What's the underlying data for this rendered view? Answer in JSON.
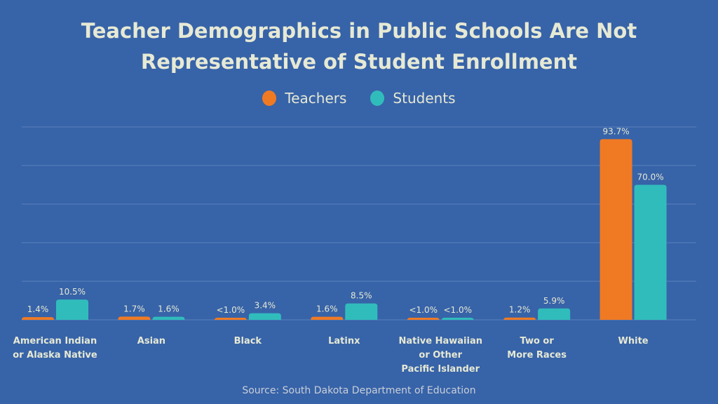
{
  "chart_data": {
    "type": "bar",
    "title_lines": [
      "Teacher Demographics in Public Schools Are Not",
      "Representative of Student Enrollment"
    ],
    "categories": [
      [
        "American Indian",
        "or Alaska Native"
      ],
      [
        "Asian"
      ],
      [
        "Black"
      ],
      [
        "Latinx"
      ],
      [
        "Native Hawaiian",
        "or Other",
        "Pacific Islander"
      ],
      [
        "Two or",
        "More Races"
      ],
      [
        "White"
      ]
    ],
    "series": [
      {
        "name": "Teachers",
        "color": "#f07a24",
        "values": [
          1.4,
          1.7,
          0.9,
          1.6,
          0.8,
          1.2,
          93.7
        ],
        "labels": [
          "1.4%",
          "1.7%",
          "<1.0%",
          "1.6%",
          "<1.0%",
          "1.2%",
          "93.7%"
        ]
      },
      {
        "name": "Students",
        "color": "#31bcbc",
        "values": [
          10.5,
          1.6,
          3.4,
          8.5,
          0.8,
          5.9,
          70.0
        ],
        "labels": [
          "10.5%",
          "1.6%",
          "3.4%",
          "8.5%",
          "<1.0%",
          "5.9%",
          "70.0%"
        ]
      }
    ],
    "ylim": [
      0,
      100
    ],
    "gridlines": [
      20,
      40,
      60,
      80,
      100
    ],
    "grid": true,
    "legend_position": "top-center",
    "source": "Source: South Dakota Department of Education"
  },
  "colors": {
    "background": "#3763a8",
    "text": "#e6e9d4",
    "grid": "#5a80bb"
  }
}
